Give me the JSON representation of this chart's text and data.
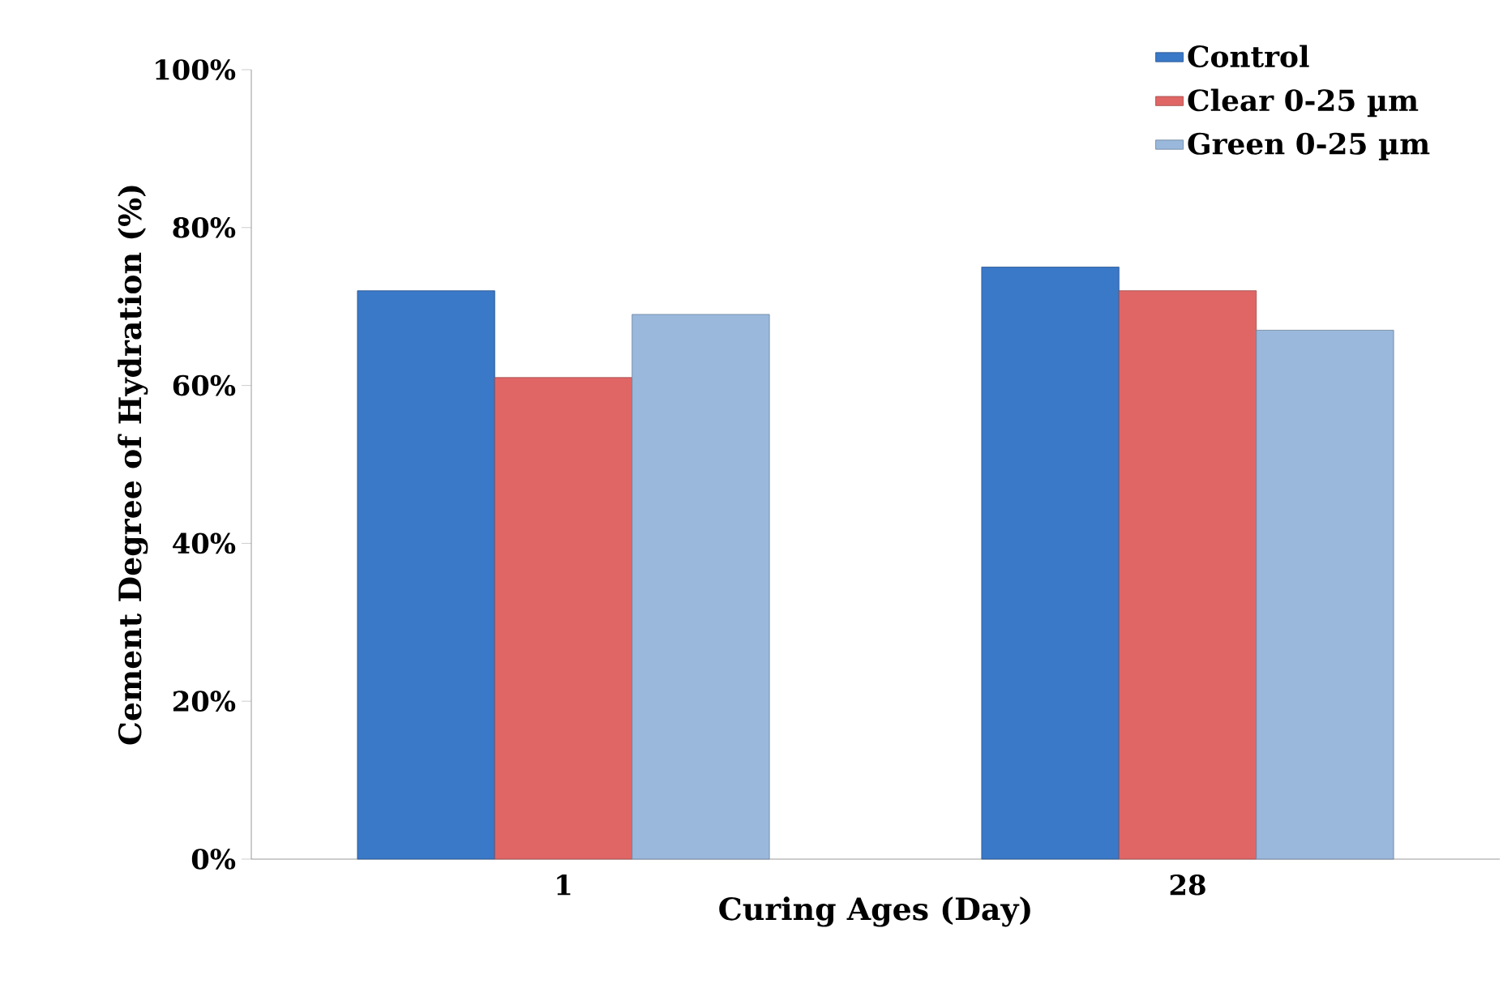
{
  "chart_data": {
    "type": "bar",
    "xlabel": "Curing Ages (Day)",
    "ylabel": "Cement Degree of Hydration (%)",
    "categories": [
      "1",
      "28"
    ],
    "series": [
      {
        "name": "Control",
        "color": "#3a78c8",
        "values": [
          72,
          75
        ]
      },
      {
        "name": "Clear 0-25 µm",
        "color": "#e06666",
        "values": [
          61,
          72
        ]
      },
      {
        "name": "Green 0-25 µm",
        "color": "#9ab8dc",
        "values": [
          69,
          67
        ]
      }
    ],
    "ylim": [
      0,
      100
    ],
    "yticks": [
      {
        "value": 0,
        "label": "0%"
      },
      {
        "value": 20,
        "label": "20%"
      },
      {
        "value": 40,
        "label": "40%"
      },
      {
        "value": 60,
        "label": "60%"
      },
      {
        "value": 80,
        "label": "80%"
      },
      {
        "value": 100,
        "label": "100%"
      }
    ],
    "legend": "top right"
  }
}
